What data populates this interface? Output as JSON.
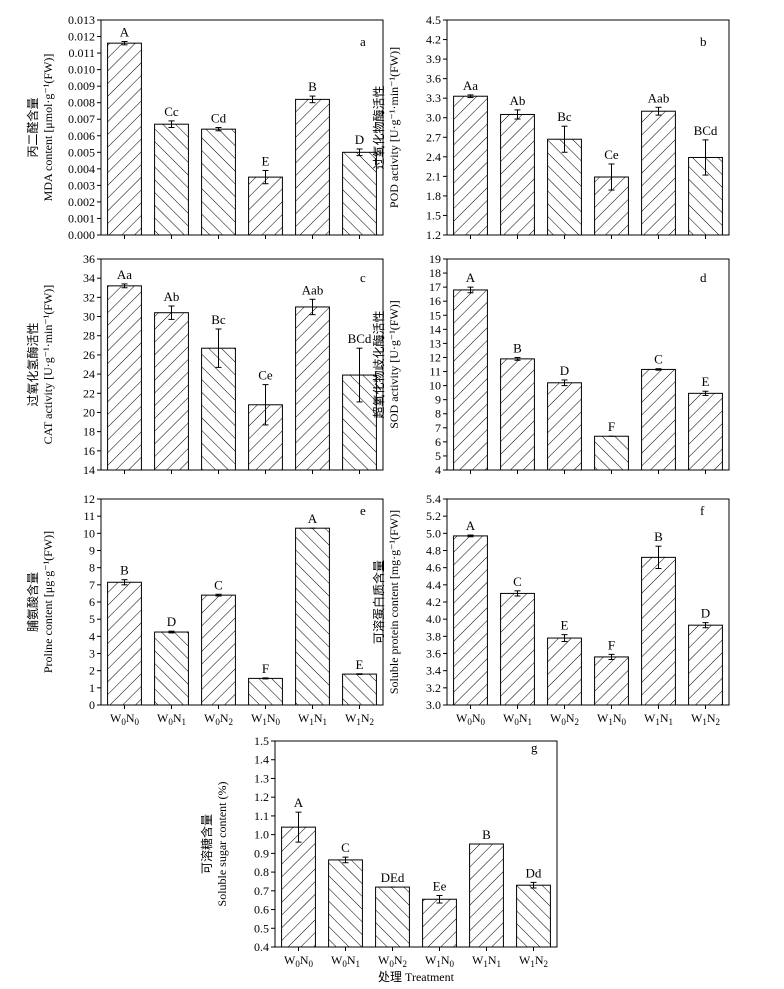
{
  "chart_data": [
    {
      "panel": "a",
      "type": "bar",
      "ylabel_cn": "丙二醛含量",
      "ylabel_en": "MDA content [μmol·g⁻¹(FW)]",
      "categories": [
        [
          "W",
          "0",
          "N",
          "0"
        ],
        [
          "W",
          "0",
          "N",
          "1"
        ],
        [
          "W",
          "0",
          "N",
          "2"
        ],
        [
          "W",
          "1",
          "N",
          "0"
        ],
        [
          "W",
          "1",
          "N",
          "1"
        ],
        [
          "W",
          "1",
          "N",
          "2"
        ]
      ],
      "show_xticks": false,
      "values": [
        0.0116,
        0.0067,
        0.0064,
        0.0035,
        0.0082,
        0.005
      ],
      "errors": [
        0.0001,
        0.0002,
        0.0001,
        0.0004,
        0.0002,
        0.0002
      ],
      "labels": [
        "A",
        "Cc",
        "Cd",
        "E",
        "B",
        "D"
      ],
      "ylim": [
        0,
        0.013
      ],
      "ytick_step": 0.001,
      "ytick_decimals": 3,
      "hatch": [
        "/",
        "\\",
        "\\",
        "/",
        "/",
        "\\"
      ]
    },
    {
      "panel": "b",
      "type": "bar",
      "ylabel_cn": "过氧化物酶活性",
      "ylabel_en": "POD activity [U·g⁻¹·min⁻¹(FW)]",
      "categories": [
        [
          "W",
          "0",
          "N",
          "0"
        ],
        [
          "W",
          "0",
          "N",
          "1"
        ],
        [
          "W",
          "0",
          "N",
          "2"
        ],
        [
          "W",
          "1",
          "N",
          "0"
        ],
        [
          "W",
          "1",
          "N",
          "1"
        ],
        [
          "W",
          "1",
          "N",
          "2"
        ]
      ],
      "show_xticks": false,
      "values": [
        3.33,
        3.05,
        2.67,
        2.09,
        3.1,
        2.39
      ],
      "errors": [
        0.02,
        0.07,
        0.2,
        0.2,
        0.06,
        0.27
      ],
      "labels": [
        "Aa",
        "Ab",
        "Bc",
        "Ce",
        "Aab",
        "BCd"
      ],
      "ylim": [
        1.2,
        4.5
      ],
      "ytick_step": 0.3,
      "ytick_decimals": 1,
      "hatch": [
        "/",
        "/",
        "\\",
        "/",
        "/",
        "\\"
      ]
    },
    {
      "panel": "c",
      "type": "bar",
      "ylabel_cn": "过氧化氢酶活性",
      "ylabel_en": "CAT activity [U·g⁻¹·min⁻¹(FW)]",
      "categories": [
        [
          "W",
          "0",
          "N",
          "0"
        ],
        [
          "W",
          "0",
          "N",
          "1"
        ],
        [
          "W",
          "0",
          "N",
          "2"
        ],
        [
          "W",
          "1",
          "N",
          "0"
        ],
        [
          "W",
          "1",
          "N",
          "1"
        ],
        [
          "W",
          "1",
          "N",
          "2"
        ]
      ],
      "show_xticks": false,
      "values": [
        33.2,
        30.4,
        26.7,
        20.8,
        31.0,
        23.9
      ],
      "errors": [
        0.2,
        0.7,
        2.0,
        2.1,
        0.8,
        2.8
      ],
      "labels": [
        "Aa",
        "Ab",
        "Bc",
        "Ce",
        "Aab",
        "BCd"
      ],
      "ylim": [
        14,
        36
      ],
      "ytick_step": 2,
      "ytick_decimals": 0,
      "hatch": [
        "/",
        "/",
        "\\",
        "/",
        "/",
        "\\"
      ]
    },
    {
      "panel": "d",
      "type": "bar",
      "ylabel_cn": "超氧化物歧化酶活性",
      "ylabel_en": "SOD activity [U·g⁻¹(FW)]",
      "categories": [
        [
          "W",
          "0",
          "N",
          "0"
        ],
        [
          "W",
          "0",
          "N",
          "1"
        ],
        [
          "W",
          "0",
          "N",
          "2"
        ],
        [
          "W",
          "1",
          "N",
          "0"
        ],
        [
          "W",
          "1",
          "N",
          "1"
        ],
        [
          "W",
          "1",
          "N",
          "2"
        ]
      ],
      "show_xticks": false,
      "values": [
        16.8,
        11.9,
        10.2,
        6.4,
        11.15,
        9.45
      ],
      "errors": [
        0.2,
        0.1,
        0.2,
        0.0,
        0.05,
        0.15
      ],
      "labels": [
        "A",
        "B",
        "D",
        "F",
        "C",
        "E"
      ],
      "ylim": [
        4,
        19
      ],
      "ytick_step": 1,
      "ytick_decimals": 0,
      "hatch": [
        "/",
        "/",
        "/",
        "\\",
        "/",
        "/"
      ]
    },
    {
      "panel": "e",
      "type": "bar",
      "ylabel_cn": "脯氨酸含量",
      "ylabel_en": "Proline content [μg·g⁻¹(FW)]",
      "categories": [
        [
          "W",
          "0",
          "N",
          "0"
        ],
        [
          "W",
          "0",
          "N",
          "1"
        ],
        [
          "W",
          "0",
          "N",
          "2"
        ],
        [
          "W",
          "1",
          "N",
          "0"
        ],
        [
          "W",
          "1",
          "N",
          "1"
        ],
        [
          "W",
          "1",
          "N",
          "2"
        ]
      ],
      "show_xticks": true,
      "values": [
        7.15,
        4.25,
        6.4,
        1.55,
        10.3,
        1.8
      ],
      "errors": [
        0.15,
        0.05,
        0.05,
        0.03,
        0.0,
        0.02
      ],
      "labels": [
        "B",
        "D",
        "C",
        "F",
        "A",
        "E"
      ],
      "ylim": [
        0,
        12
      ],
      "ytick_step": 1,
      "ytick_decimals": 0,
      "hatch": [
        "/",
        "\\",
        "/",
        "\\",
        "\\",
        "\\"
      ]
    },
    {
      "panel": "f",
      "type": "bar",
      "ylabel_cn": "可溶蛋白质含量",
      "ylabel_en": "Soluble protein content [mg·g⁻¹(FW)]",
      "categories": [
        [
          "W",
          "0",
          "N",
          "0"
        ],
        [
          "W",
          "0",
          "N",
          "1"
        ],
        [
          "W",
          "0",
          "N",
          "2"
        ],
        [
          "W",
          "1",
          "N",
          "0"
        ],
        [
          "W",
          "1",
          "N",
          "1"
        ],
        [
          "W",
          "1",
          "N",
          "2"
        ]
      ],
      "show_xticks": true,
      "values": [
        4.97,
        4.3,
        3.78,
        3.56,
        4.72,
        3.93
      ],
      "errors": [
        0.01,
        0.03,
        0.04,
        0.03,
        0.13,
        0.03
      ],
      "labels": [
        "A",
        "C",
        "E",
        "F",
        "B",
        "D"
      ],
      "ylim": [
        3.0,
        5.4
      ],
      "ytick_step": 0.2,
      "ytick_decimals": 1,
      "hatch": [
        "/",
        "/",
        "/",
        "/",
        "/",
        "/"
      ]
    },
    {
      "panel": "g",
      "type": "bar",
      "ylabel_cn": "可溶糖含量",
      "ylabel_en": "Soluble sugar content (%)",
      "xlabel": "处理 Treatment",
      "categories": [
        [
          "W",
          "0",
          "N",
          "0"
        ],
        [
          "W",
          "0",
          "N",
          "1"
        ],
        [
          "W",
          "0",
          "N",
          "2"
        ],
        [
          "W",
          "1",
          "N",
          "0"
        ],
        [
          "W",
          "1",
          "N",
          "1"
        ],
        [
          "W",
          "1",
          "N",
          "2"
        ]
      ],
      "show_xticks": true,
      "values": [
        1.04,
        0.865,
        0.72,
        0.655,
        0.95,
        0.73
      ],
      "errors": [
        0.08,
        0.015,
        0.0,
        0.02,
        0.0,
        0.015
      ],
      "labels": [
        "A",
        "C",
        "DEd",
        "Ee",
        "B",
        "Dd"
      ],
      "ylim": [
        0.4,
        1.5
      ],
      "ytick_step": 0.1,
      "ytick_decimals": 1,
      "hatch": [
        "/",
        "\\",
        "\\",
        "/",
        "/",
        "\\"
      ]
    }
  ]
}
